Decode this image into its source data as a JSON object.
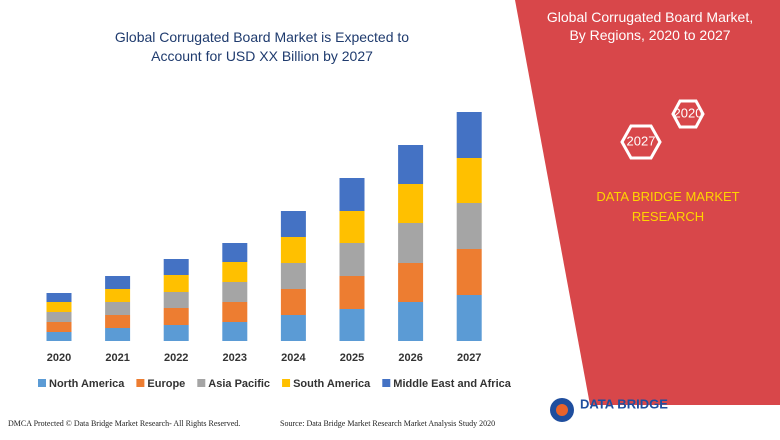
{
  "chart_data": {
    "type": "stacked_bar",
    "title": "Global Corrugated Board Market is Expected to Account for USD XX Billion by 2027",
    "categories": [
      "2020",
      "2021",
      "2022",
      "2023",
      "2024",
      "2025",
      "2026",
      "2027"
    ],
    "series": [
      {
        "name": "North America",
        "color": "#5b9bd5",
        "values": [
          9,
          13,
          16,
          19,
          26,
          32,
          39,
          46
        ]
      },
      {
        "name": "Europe",
        "color": "#ed7d31",
        "values": [
          10,
          13,
          17,
          20,
          26,
          33,
          39,
          46
        ]
      },
      {
        "name": "Asia Pacific",
        "color": "#a5a5a5",
        "values": [
          10,
          13,
          16,
          20,
          26,
          33,
          40,
          46
        ]
      },
      {
        "name": "South America",
        "color": "#ffc000",
        "values": [
          10,
          13,
          17,
          20,
          26,
          32,
          39,
          45
        ]
      },
      {
        "name": "Middle East and Africa",
        "color": "#4472c4",
        "values": [
          9,
          13,
          16,
          19,
          26,
          33,
          39,
          46
        ]
      }
    ]
  },
  "panel": {
    "title": "Global Corrugated Board Market, By Regions, 2020 to 2027",
    "hex_start": "2027",
    "hex_end": "2020",
    "brand": "DATA BRIDGE MARKET RESEARCH"
  },
  "footer": {
    "dmca": "DMCA Protected © Data Bridge Market Research- All Rights Reserved.",
    "source": "Source: Data Bridge Market Research Market Analysis Study 2020",
    "logo": "DATA BRIDGE"
  }
}
